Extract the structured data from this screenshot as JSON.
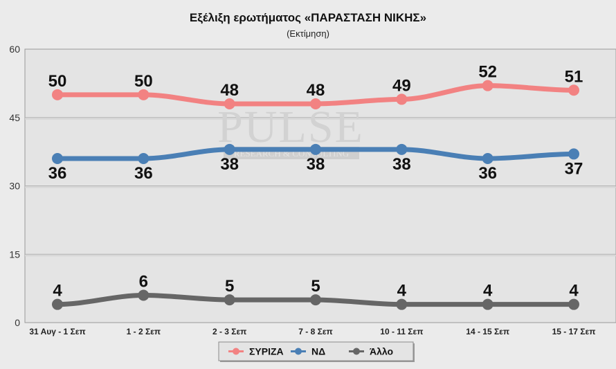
{
  "chart_data": {
    "type": "line",
    "title": "Εξέλιξη ερωτήματος «ΠΑΡΑΣΤΑΣΗ ΝΙΚΗΣ»",
    "subtitle": "(Εκτίμηση)",
    "categories": [
      "31 Αυγ - 1 Σεπ",
      "1 - 2 Σεπ",
      "2 - 3 Σεπ",
      "7 - 8 Σεπ",
      "10 - 11 Σεπ",
      "14 - 15 Σεπ",
      "15 - 17 Σεπ"
    ],
    "ylim": [
      0,
      60
    ],
    "yticks": [
      0,
      15,
      30,
      45,
      60
    ],
    "grid": true,
    "legend_position": "bottom-center",
    "series": [
      {
        "name": "ΣΥΡΙΖΑ",
        "color": "#f28282",
        "values": [
          50,
          50,
          48,
          48,
          49,
          52,
          51
        ],
        "label_side": "above"
      },
      {
        "name": "ΝΔ",
        "color": "#4a7fb5",
        "values": [
          36,
          36,
          38,
          38,
          38,
          36,
          37
        ],
        "label_side": "below"
      },
      {
        "name": "Άλλο",
        "color": "#666666",
        "values": [
          4,
          6,
          5,
          5,
          4,
          4,
          4
        ],
        "label_side": "above"
      }
    ]
  },
  "watermark": {
    "brand": "PULSE",
    "tagline": "RESEARCH & CONSULTING"
  }
}
